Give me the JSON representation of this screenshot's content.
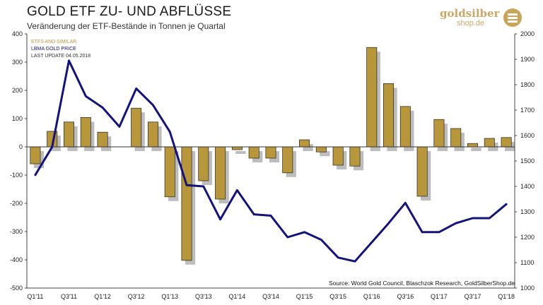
{
  "header": {
    "title": "GOLD ETF ZU- UND ABFLÜSSE",
    "subtitle": "Veränderung der ETF-Bestände in Tonnen je Quartal"
  },
  "logo": {
    "line1": "goldsilber",
    "line2": "shop.de"
  },
  "colors": {
    "bar": "#b8973c",
    "bar_edge": "#222222",
    "line": "#14137a",
    "shadow": "#bdbdbd",
    "legend_etf": "#b8973c",
    "legend_gold": "#14137a"
  },
  "chart_data": {
    "type": "bar",
    "title": "GOLD ETF ZU- UND ABFLÜSSE",
    "subtitle": "Veränderung der ETF-Bestände in Tonnen je Quartal",
    "legend": [
      "ETFS AND SIMILAR",
      "LBMA GOLD PRICE",
      "LAST UPDATE 04.05.2018"
    ],
    "legend_placement": "top-left",
    "source": "Source: World Gold Council, Blaschzok Research, GoldSilberShop.de",
    "categories": [
      "Q1'11",
      "Q2'11",
      "Q3'11",
      "Q4'11",
      "Q1'12",
      "Q2'12",
      "Q3'12",
      "Q4'12",
      "Q1'13",
      "Q2'13",
      "Q3'13",
      "Q4'13",
      "Q1'14",
      "Q2'14",
      "Q3'14",
      "Q4'14",
      "Q1'15",
      "Q2'15",
      "Q3'15",
      "Q4'15",
      "Q1'16",
      "Q2'16",
      "Q3'16",
      "Q4'16",
      "Q1'17",
      "Q2'17",
      "Q3'17",
      "Q4'17",
      "Q1'18"
    ],
    "x_tick_labels": [
      "Q1'11",
      "Q3'11",
      "Q1'12",
      "Q3'12",
      "Q1'13",
      "Q3'13",
      "Q1'14",
      "Q3'14",
      "Q1'15",
      "Q3'15",
      "Q1'16",
      "Q3'16",
      "Q1'17",
      "Q3'17",
      "Q1'18"
    ],
    "series": [
      {
        "name": "ETFS AND SIMILAR",
        "axis": "left",
        "values": [
          -60,
          55,
          88,
          104,
          52,
          null,
          137,
          88,
          -177,
          -402,
          -120,
          -185,
          -10,
          -40,
          -40,
          -92,
          25,
          -18,
          -65,
          -68,
          352,
          224,
          143,
          -175,
          97,
          65,
          12,
          30,
          33
        ]
      },
      {
        "name": "LBMA GOLD PRICE",
        "axis": "right",
        "values": [
          1445,
          1555,
          1895,
          1755,
          1710,
          1635,
          1785,
          1720,
          1615,
          1405,
          1400,
          1270,
          1385,
          1290,
          1285,
          1200,
          1220,
          1190,
          1120,
          1105,
          1180,
          1255,
          1335,
          1220,
          1220,
          1255,
          1275,
          1275,
          1330
        ]
      }
    ],
    "y_left": {
      "min": -500,
      "max": 400,
      "ticks": [
        -500,
        -400,
        -300,
        -200,
        -100,
        0,
        100,
        200,
        300,
        400
      ]
    },
    "y_right": {
      "min": 1000,
      "max": 2000,
      "ticks": [
        1000,
        1100,
        1200,
        1300,
        1400,
        1500,
        1600,
        1700,
        1800,
        1900,
        2000
      ]
    },
    "grid": false
  }
}
